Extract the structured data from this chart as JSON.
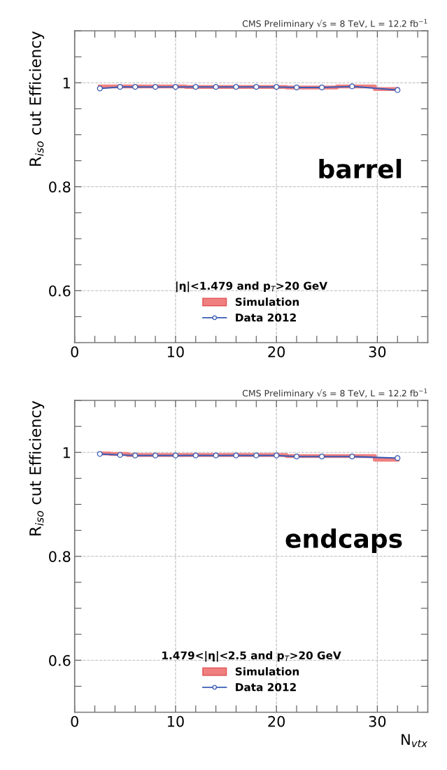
{
  "chart_data": [
    {
      "type": "line",
      "title": "CMS Preliminary √s = 8 TeV, L = 12.2 fb$^{−1}$",
      "ylabel": "R$_{iso}$ cut Efficiency",
      "legend_title": "|η|<1.479 and p$_{T}$>20 GeV",
      "annotations": [
        "barrel"
      ],
      "x": [
        2.5,
        4.5,
        6,
        8,
        10,
        12,
        14,
        16,
        18,
        20,
        22,
        24.5,
        27.5,
        32
      ],
      "series": [
        {
          "name": "Simulation",
          "type": "step",
          "color": "#f08080",
          "values": [
            0.993,
            0.993,
            0.993,
            0.993,
            0.993,
            0.992,
            0.992,
            0.992,
            0.992,
            0.992,
            0.991,
            0.991,
            0.993,
            0.988
          ]
        },
        {
          "name": "Data 2012",
          "color": "#3a5bb5",
          "marker": "circle",
          "values": [
            0.989,
            0.992,
            0.992,
            0.992,
            0.992,
            0.992,
            0.992,
            0.992,
            0.992,
            0.992,
            0.991,
            0.991,
            0.993,
            0.986
          ]
        }
      ],
      "xlim": [
        0,
        35
      ],
      "xticks": [
        0,
        {
          "value": 2,
          "label": null
        },
        {
          "value": 4,
          "label": null
        },
        {
          "value": 6,
          "label": null
        },
        {
          "value": 8,
          "label": null
        },
        10,
        {
          "value": 12,
          "label": null
        },
        {
          "value": 14,
          "label": null
        },
        {
          "value": 16,
          "label": null
        },
        {
          "value": 18,
          "label": null
        },
        20,
        {
          "value": 22,
          "label": null
        },
        {
          "value": 24,
          "label": null
        },
        {
          "value": 26,
          "label": null
        },
        {
          "value": 28,
          "label": null
        },
        30,
        {
          "value": 32,
          "label": null
        },
        {
          "value": 34,
          "label": null
        }
      ],
      "ylim": [
        0.5,
        1.1
      ],
      "yticks": [
        {
          "value": 0.5,
          "label": null
        },
        {
          "value": 0.55,
          "label": null
        },
        0.6,
        {
          "value": 0.65,
          "label": null
        },
        {
          "value": 0.7,
          "label": null
        },
        {
          "value": 0.75,
          "label": null
        },
        0.8,
        {
          "value": 0.85,
          "label": null
        },
        {
          "value": 0.9,
          "label": null
        },
        {
          "value": 0.95,
          "label": null
        },
        1,
        {
          "value": 1.05,
          "label": null
        },
        {
          "value": 1.1,
          "label": null
        }
      ],
      "grid": true,
      "legend": "bottom"
    },
    {
      "type": "line",
      "title": "CMS Preliminary √s = 8 TeV, L = 12.2 fb$^{−1}$",
      "ylabel": "R$_{iso}$ cut Efficiency",
      "xlabel": "N$_{vtx}$",
      "legend_title": "1.479<|η|<2.5 and p$_{T}$>20 GeV",
      "annotations": [
        "endcaps"
      ],
      "x": [
        2.5,
        4.5,
        6,
        8,
        10,
        12,
        14,
        16,
        18,
        20,
        22,
        24.5,
        27.5,
        32
      ],
      "series": [
        {
          "name": "Simulation",
          "type": "step",
          "color": "#f08080",
          "values": [
            0.998,
            0.997,
            0.995,
            0.995,
            0.995,
            0.995,
            0.995,
            0.995,
            0.995,
            0.995,
            0.993,
            0.993,
            0.993,
            0.986
          ]
        },
        {
          "name": "Data 2012",
          "color": "#3a5bb5",
          "marker": "circle",
          "values": [
            0.997,
            0.995,
            0.994,
            0.994,
            0.994,
            0.994,
            0.994,
            0.994,
            0.994,
            0.994,
            0.992,
            0.992,
            0.992,
            0.989
          ]
        }
      ],
      "xlim": [
        0,
        35
      ],
      "xticks": [
        0,
        {
          "value": 2,
          "label": null
        },
        {
          "value": 4,
          "label": null
        },
        {
          "value": 6,
          "label": null
        },
        {
          "value": 8,
          "label": null
        },
        10,
        {
          "value": 12,
          "label": null
        },
        {
          "value": 14,
          "label": null
        },
        {
          "value": 16,
          "label": null
        },
        {
          "value": 18,
          "label": null
        },
        20,
        {
          "value": 22,
          "label": null
        },
        {
          "value": 24,
          "label": null
        },
        {
          "value": 26,
          "label": null
        },
        {
          "value": 28,
          "label": null
        },
        30,
        {
          "value": 32,
          "label": null
        },
        {
          "value": 34,
          "label": null
        }
      ],
      "ylim": [
        0.5,
        1.1
      ],
      "yticks": [
        {
          "value": 0.5,
          "label": null
        },
        {
          "value": 0.55,
          "label": null
        },
        0.6,
        {
          "value": 0.65,
          "label": null
        },
        {
          "value": 0.7,
          "label": null
        },
        {
          "value": 0.75,
          "label": null
        },
        0.8,
        {
          "value": 0.85,
          "label": null
        },
        {
          "value": 0.9,
          "label": null
        },
        {
          "value": 0.95,
          "label": null
        },
        1,
        {
          "value": 1.05,
          "label": null
        },
        {
          "value": 1.1,
          "label": null
        }
      ],
      "grid": true,
      "legend": "bottom"
    }
  ]
}
